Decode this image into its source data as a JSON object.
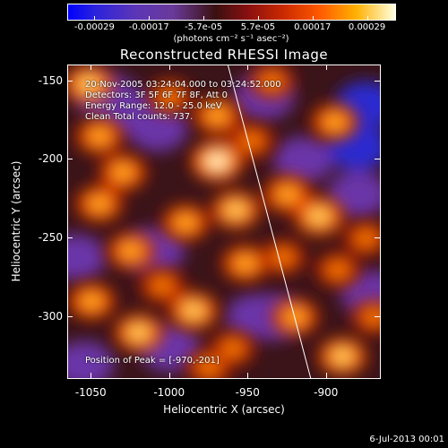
{
  "colorbar": {
    "labels": [
      "-0.00029",
      "-0.00017",
      "-5.7e-05",
      "5.7e-05",
      "0.00017",
      "0.00029"
    ],
    "units": "(photons cm⁻² s⁻¹ asec⁻²)",
    "colors": [
      "#0000ff",
      "#5a35b8",
      "#3a1010",
      "#cc2a00",
      "#ffb000",
      "#ffffe0"
    ]
  },
  "chart_data": {
    "type": "heatmap",
    "title": "Reconstructed RHESSI Image",
    "xlabel": "Heliocentric X (arcsec)",
    "ylabel": "Heliocentric Y (arcsec)",
    "x_ticks": [
      "-1050",
      "-1000",
      "-950",
      "-900"
    ],
    "y_ticks": [
      "-150",
      "-200",
      "-250",
      "-300"
    ],
    "xlim": [
      -1065,
      -865
    ],
    "ylim": [
      -340,
      -140
    ],
    "limb_line": [
      [
        -963,
        -140
      ],
      [
        -910,
        -340
      ]
    ],
    "annotations": {
      "time_range": "20-Nov-2005 03:24:04.000 to 03:24:52.000",
      "detectors": "Detectors: 3F 5F 6F 7F 8F, Att 0",
      "energy": "Energy Range: 12.0 - 25.0 keV",
      "clean": "Clean     Total counts: 737.",
      "peak": "Position of Peak = [-970,-201]"
    },
    "intensity_blobs": [
      {
        "x": -1052,
        "y": -152,
        "level": 0.85
      },
      {
        "x": -1045,
        "y": -185,
        "level": 0.7
      },
      {
        "x": -1030,
        "y": -208,
        "level": 0.75
      },
      {
        "x": -1045,
        "y": -228,
        "level": 0.72
      },
      {
        "x": -1025,
        "y": -258,
        "level": 0.7
      },
      {
        "x": -1050,
        "y": -290,
        "level": 0.75
      },
      {
        "x": -1020,
        "y": -310,
        "level": 0.8
      },
      {
        "x": -1005,
        "y": -280,
        "level": 0.65
      },
      {
        "x": -990,
        "y": -240,
        "level": 0.7
      },
      {
        "x": -985,
        "y": -296,
        "level": 0.82
      },
      {
        "x": -975,
        "y": -332,
        "level": 0.65
      },
      {
        "x": -970,
        "y": -201,
        "level": 1.0
      },
      {
        "x": -970,
        "y": -172,
        "level": 0.7
      },
      {
        "x": -958,
        "y": -232,
        "level": 0.8
      },
      {
        "x": -952,
        "y": -266,
        "level": 0.72
      },
      {
        "x": -948,
        "y": -188,
        "level": 0.68
      },
      {
        "x": -935,
        "y": -150,
        "level": 0.6
      },
      {
        "x": -925,
        "y": -222,
        "level": 0.78
      },
      {
        "x": -928,
        "y": -262,
        "level": 0.62
      },
      {
        "x": -920,
        "y": -300,
        "level": 0.7
      },
      {
        "x": -905,
        "y": -236,
        "level": 0.9
      },
      {
        "x": -895,
        "y": -176,
        "level": 0.72
      },
      {
        "x": -893,
        "y": -270,
        "level": 0.6
      },
      {
        "x": -890,
        "y": -325,
        "level": 0.8
      },
      {
        "x": -875,
        "y": -250,
        "level": 0.6
      },
      {
        "x": -870,
        "y": -300,
        "level": 0.55
      },
      {
        "x": -960,
        "y": -320,
        "level": 0.6
      },
      {
        "x": -1000,
        "y": -160,
        "level": 0.55
      }
    ],
    "negative_blobs": [
      {
        "x": -1040,
        "y": -160,
        "level": -0.55
      },
      {
        "x": -1008,
        "y": -180,
        "level": -0.6
      },
      {
        "x": -1025,
        "y": -170,
        "level": -0.65
      },
      {
        "x": -1010,
        "y": -258,
        "level": -0.5
      },
      {
        "x": -1060,
        "y": -262,
        "level": -0.5
      },
      {
        "x": -1000,
        "y": -320,
        "level": -0.5
      },
      {
        "x": -945,
        "y": -300,
        "level": -0.55
      },
      {
        "x": -940,
        "y": -160,
        "level": -0.45
      },
      {
        "x": -915,
        "y": -200,
        "level": -0.55
      },
      {
        "x": -880,
        "y": -192,
        "level": -0.75
      },
      {
        "x": -875,
        "y": -165,
        "level": -0.8
      },
      {
        "x": -880,
        "y": -222,
        "level": -0.5
      },
      {
        "x": -935,
        "y": -300,
        "level": -0.5
      },
      {
        "x": -872,
        "y": -285,
        "level": -0.45
      },
      {
        "x": -1055,
        "y": -330,
        "level": -0.45
      }
    ]
  },
  "footer": {
    "timestamp": "6-Jul-2013 00:01"
  }
}
